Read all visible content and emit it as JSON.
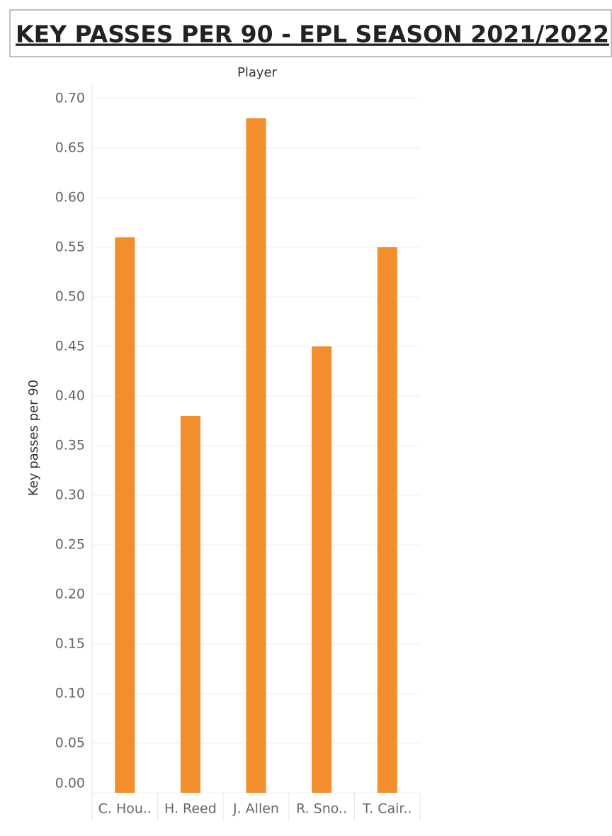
{
  "chart_data": {
    "type": "bar",
    "title": "KEY PASSES PER 90 - EPL SEASON 2021/2022",
    "x_label": "Player",
    "y_label": "Key passes per 90",
    "categories": [
      "C. Hou..",
      "H. Reed",
      "J. Allen",
      "R. Sno..",
      "T. Cair.."
    ],
    "values": [
      0.56,
      0.38,
      0.68,
      0.45,
      0.55
    ],
    "color": "#f28e2b",
    "ylim": [
      0,
      0.7
    ],
    "yticks": [
      {
        "value": 0,
        "label": "0.00"
      },
      {
        "value": 0.05,
        "label": "0.05"
      },
      {
        "value": 0.1,
        "label": "0.10"
      },
      {
        "value": 0.15,
        "label": "0.15"
      },
      {
        "value": 0.2,
        "label": "0.20"
      },
      {
        "value": 0.25,
        "label": "0.25"
      },
      {
        "value": 0.3,
        "label": "0.30"
      },
      {
        "value": 0.35,
        "label": "0.35"
      },
      {
        "value": 0.4,
        "label": "0.40"
      },
      {
        "value": 0.45,
        "label": "0.45"
      },
      {
        "value": 0.5,
        "label": "0.50"
      },
      {
        "value": 0.55,
        "label": "0.55"
      },
      {
        "value": 0.6,
        "label": "0.60"
      },
      {
        "value": 0.65,
        "label": "0.65"
      },
      {
        "value": 0.7,
        "label": "0.70"
      }
    ],
    "grid": true
  }
}
